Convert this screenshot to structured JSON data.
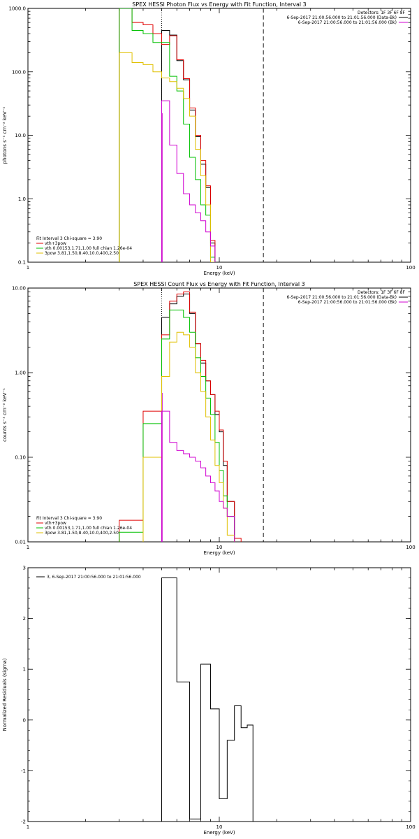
{
  "chart_data": [
    {
      "type": "line",
      "title": "SPEX HESSI Photon Flux vs Energy with Fit Function, Interval 3",
      "xlabel": "Energy (keV)",
      "ylabel": "photons s⁻¹ cm⁻² keV⁻¹",
      "xscale": "log",
      "yscale": "log",
      "xlim": [
        1,
        100
      ],
      "ylim": [
        0.1,
        1000
      ],
      "xticks": [
        "1",
        "10",
        "100"
      ],
      "yticks": [
        {
          "v": 0.1,
          "t": "0.1"
        },
        {
          "v": 1,
          "t": "1.0"
        },
        {
          "v": 10,
          "t": "10.0"
        },
        {
          "v": 100,
          "t": "100.0"
        },
        {
          "v": 1000,
          "t": "1000.0"
        }
      ],
      "vlines": [
        {
          "x": 5.0,
          "style": "dotted",
          "color": "#000000"
        },
        {
          "x": 17.0,
          "style": "dashed",
          "color": "#000000"
        }
      ],
      "magenta_vline": {
        "x": 5.0,
        "color": "#d000d0"
      },
      "energy_edges": [
        3.0,
        3.5,
        4.0,
        4.5,
        5.0,
        5.5,
        6.0,
        6.5,
        7.0,
        7.5,
        8.0,
        8.5,
        9.0,
        9.5,
        10.0,
        10.5,
        11.0,
        12.0,
        13.0,
        14.0,
        15.0,
        16.0,
        17.0
      ],
      "series": [
        {
          "color": "#000000",
          "values": [
            null,
            null,
            null,
            null,
            450,
            380,
            150,
            75,
            25,
            9.5,
            3.5,
            1.5,
            0.2
          ]
        },
        {
          "color": "#e00000",
          "values": [
            1200,
            600,
            550,
            400,
            270,
            370,
            155,
            78,
            27,
            10,
            4,
            1.6,
            0.22
          ]
        },
        {
          "color": "#00c000",
          "values": [
            1300,
            450,
            400,
            290,
            290,
            85,
            50,
            15,
            4.5,
            2,
            0.8,
            0.55,
            0.12
          ]
        },
        {
          "color": "#e0c000",
          "values": [
            200,
            140,
            130,
            100,
            80,
            70,
            55,
            38,
            20,
            6,
            2.3,
            0.8,
            0.1
          ]
        },
        {
          "color": "#d000d0",
          "values": [
            null,
            null,
            null,
            null,
            35,
            7,
            2.5,
            1.2,
            0.8,
            0.6,
            0.45,
            0.3,
            0.18
          ]
        }
      ],
      "legend_right": {
        "detectors": "Detectors: 1F 3F 6F 8F",
        "items": [
          {
            "label": "6-Sep-2017 21:00:56.000 to 21:01:56.000 (Data-Bk)",
            "color": "#000000"
          },
          {
            "label": "6-Sep-2017 21:00:56.000 to 21:01:56.000 (Bk)",
            "color": "#d000d0"
          }
        ]
      },
      "legend_left": {
        "header": "Fit Interval 3   Chi-square = 3.90",
        "items": [
          {
            "label": "vth+3pow",
            "color": "#e00000"
          },
          {
            "label": "vth 0.00153,1.71,1.00  full chian 1.26e-04",
            "color": "#00c000"
          },
          {
            "label": "3pow 3.81,1.50,8.40,10.0,400,2.50",
            "color": "#e0c000"
          }
        ]
      }
    },
    {
      "type": "line",
      "title": "SPEX HESSI Count Flux vs Energy with Fit Function, Interval 3",
      "xlabel": "Energy (keV)",
      "ylabel": "counts s⁻¹ cm⁻² keV⁻¹",
      "xscale": "log",
      "yscale": "log",
      "xlim": [
        1,
        100
      ],
      "ylim": [
        0.01,
        10
      ],
      "xticks": [
        "1",
        "10",
        "100"
      ],
      "yticks": [
        {
          "v": 0.01,
          "t": "0.01"
        },
        {
          "v": 0.1,
          "t": "0.10"
        },
        {
          "v": 1,
          "t": "1.00"
        },
        {
          "v": 10,
          "t": "10.00"
        }
      ],
      "vlines": [
        {
          "x": 5.0,
          "style": "dotted",
          "color": "#000000"
        },
        {
          "x": 17.0,
          "style": "dashed",
          "color": "#000000"
        }
      ],
      "magenta_vline": {
        "x": 5.0,
        "color": "#d000d0"
      },
      "energy_edges": [
        3.0,
        3.5,
        4.0,
        4.5,
        5.0,
        5.5,
        6.0,
        6.5,
        7.0,
        7.5,
        8.0,
        8.5,
        9.0,
        9.5,
        10.0,
        10.5,
        11.0,
        12.0,
        13.0,
        14.0,
        15.0,
        16.0,
        17.0,
        18.0,
        19.0
      ],
      "series": [
        {
          "color": "#000000",
          "values": [
            null,
            null,
            null,
            null,
            4.5,
            6.5,
            8,
            8.5,
            5,
            2.2,
            1.3,
            0.8,
            0.55,
            0.32,
            0.2,
            0.08,
            0.03,
            null
          ]
        },
        {
          "color": "#e00000",
          "values": [
            0.018,
            0.018,
            0.35,
            0.35,
            2.8,
            7,
            8.5,
            9,
            5.2,
            2.2,
            1.4,
            0.8,
            0.55,
            0.35,
            0.21,
            0.09,
            0.03,
            0.011
          ]
        },
        {
          "color": "#00c000",
          "values": [
            0.013,
            0.013,
            0.25,
            0.25,
            2.5,
            5.5,
            5.5,
            4.5,
            3,
            1.5,
            0.9,
            0.5,
            0.32,
            0.15,
            0.07,
            0.035,
            0.02,
            null
          ]
        },
        {
          "color": "#e0c000",
          "values": [
            null,
            null,
            0.1,
            0.1,
            0.9,
            2.3,
            3,
            2.8,
            2,
            1,
            0.6,
            0.3,
            0.16,
            0.08,
            0.05,
            0.025,
            0.012,
            null
          ]
        },
        {
          "color": "#d000d0",
          "values": [
            null,
            null,
            null,
            null,
            0.35,
            0.15,
            0.12,
            0.11,
            0.1,
            0.09,
            0.075,
            0.06,
            0.05,
            0.04,
            0.03,
            0.025,
            0.02,
            null
          ]
        }
      ],
      "legend_right": {
        "detectors": "Detectors: 1F 3F 6F 8F",
        "items": [
          {
            "label": "6-Sep-2017 21:00:56.000 to 21:01:56.000 (Data-Bk)",
            "color": "#000000"
          },
          {
            "label": "6-Sep-2017 21:00:56.000 to 21:01:56.000 (Bk)",
            "color": "#d000d0"
          }
        ]
      },
      "legend_left": {
        "header": "Fit Interval 3   Chi-square = 3.90",
        "items": [
          {
            "label": "vth+3pow",
            "color": "#e00000"
          },
          {
            "label": "vth 0.00153,1.71,1.00  full chian 1.26e-04",
            "color": "#00c000"
          },
          {
            "label": "3pow 3.81,1.50,8.40,10.0,400,2.50",
            "color": "#e0c000"
          }
        ]
      }
    },
    {
      "type": "line",
      "title": "",
      "xlabel": "Energy (keV)",
      "ylabel": "Normalized Residuals (sigma)",
      "xscale": "log",
      "yscale": "linear",
      "xlim": [
        1,
        100
      ],
      "ylim": [
        -2,
        3
      ],
      "xticks": [
        "1",
        "10",
        "100"
      ],
      "yticks": [
        {
          "v": -2,
          "t": "-2"
        },
        {
          "v": -1,
          "t": "-1"
        },
        {
          "v": 0,
          "t": "0"
        },
        {
          "v": 1,
          "t": "1"
        },
        {
          "v": 2,
          "t": "2"
        },
        {
          "v": 3,
          "t": "3"
        }
      ],
      "vlines": [],
      "energy_edges": [
        5.0,
        6.0,
        7.0,
        8.0,
        9.0,
        10.0,
        11.0,
        12.0,
        13.0,
        14.0,
        15.0,
        16.0,
        17.0
      ],
      "series": [
        {
          "color": "#000000",
          "values": [
            2.8,
            0.75,
            -1.95,
            1.1,
            0.22,
            -1.55,
            -0.4,
            0.28,
            -0.15,
            -0.1
          ]
        }
      ],
      "legend_left_top": {
        "items": [
          {
            "label": "3,  6-Sep-2017 21:00:56.000 to 21:01:56.000",
            "color": "#000000"
          }
        ]
      }
    }
  ]
}
